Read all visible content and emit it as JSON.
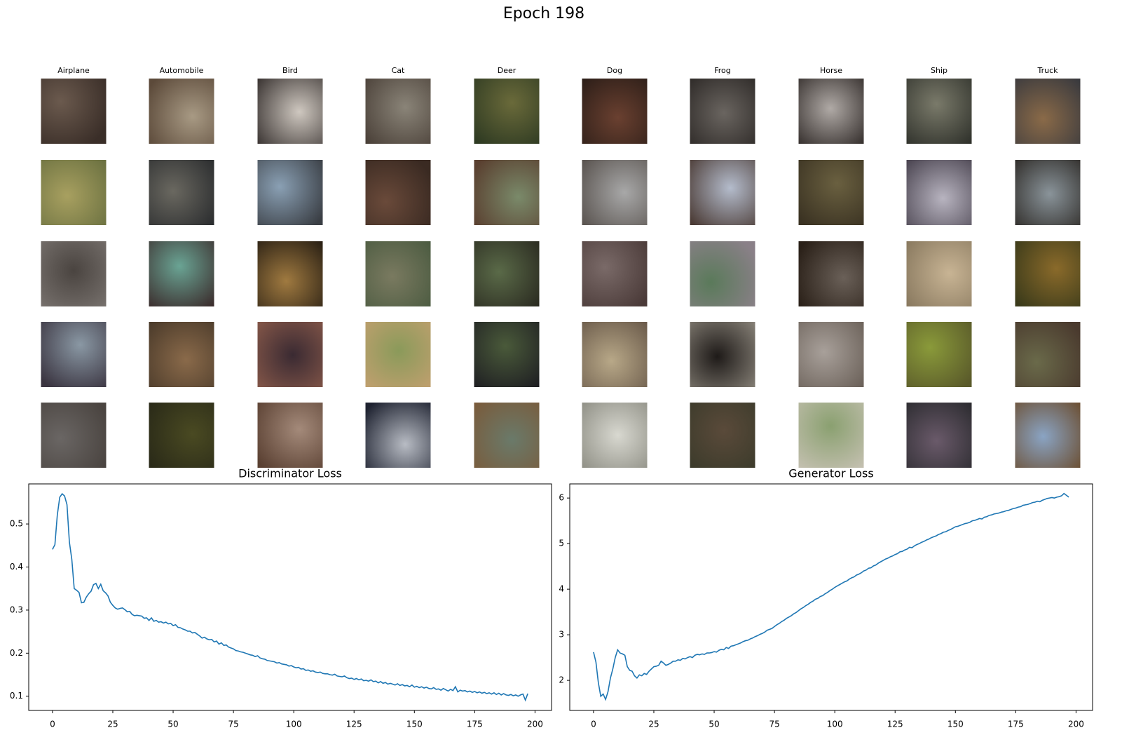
{
  "suptitle": "Epoch 198",
  "image_grid": {
    "columns": [
      "Airplane",
      "Automobile",
      "Bird",
      "Cat",
      "Deer",
      "Dog",
      "Frog",
      "Horse",
      "Ship",
      "Truck"
    ]
  },
  "chart_data": [
    {
      "type": "line",
      "title": "Discriminator Loss",
      "color": "#1f77b4",
      "x": [
        0,
        1,
        2,
        3,
        4,
        5,
        6,
        7,
        8,
        9,
        10,
        11,
        12,
        13,
        14,
        15,
        16,
        17,
        18,
        19,
        20,
        21,
        22,
        23,
        24,
        25,
        26,
        27,
        28,
        29,
        30,
        31,
        32,
        33,
        34,
        35,
        36,
        37,
        38,
        39,
        40,
        41,
        42,
        43,
        44,
        45,
        46,
        47,
        48,
        49,
        50,
        51,
        52,
        53,
        54,
        55,
        56,
        57,
        58,
        59,
        60,
        61,
        62,
        63,
        64,
        65,
        66,
        67,
        68,
        69,
        70,
        71,
        72,
        73,
        74,
        75,
        76,
        77,
        78,
        79,
        80,
        81,
        82,
        83,
        84,
        85,
        86,
        87,
        88,
        89,
        90,
        91,
        92,
        93,
        94,
        95,
        96,
        97,
        98,
        99,
        100,
        101,
        102,
        103,
        104,
        105,
        106,
        107,
        108,
        109,
        110,
        111,
        112,
        113,
        114,
        115,
        116,
        117,
        118,
        119,
        120,
        121,
        122,
        123,
        124,
        125,
        126,
        127,
        128,
        129,
        130,
        131,
        132,
        133,
        134,
        135,
        136,
        137,
        138,
        139,
        140,
        141,
        142,
        143,
        144,
        145,
        146,
        147,
        148,
        149,
        150,
        151,
        152,
        153,
        154,
        155,
        156,
        157,
        158,
        159,
        160,
        161,
        162,
        163,
        164,
        165,
        166,
        167,
        168,
        169,
        170,
        171,
        172,
        173,
        174,
        175,
        176,
        177,
        178,
        179,
        180,
        181,
        182,
        183,
        184,
        185,
        186,
        187,
        188,
        189,
        190,
        191,
        192,
        193,
        194,
        195,
        196,
        197
      ],
      "values": [
        0.441,
        0.452,
        0.521,
        0.562,
        0.57,
        0.565,
        0.545,
        0.458,
        0.418,
        0.35,
        0.346,
        0.341,
        0.317,
        0.318,
        0.33,
        0.338,
        0.344,
        0.359,
        0.362,
        0.35,
        0.36,
        0.345,
        0.34,
        0.333,
        0.318,
        0.311,
        0.305,
        0.302,
        0.304,
        0.305,
        0.301,
        0.296,
        0.297,
        0.29,
        0.287,
        0.288,
        0.287,
        0.286,
        0.281,
        0.282,
        0.276,
        0.282,
        0.274,
        0.276,
        0.272,
        0.273,
        0.27,
        0.272,
        0.268,
        0.269,
        0.264,
        0.266,
        0.26,
        0.259,
        0.256,
        0.254,
        0.251,
        0.251,
        0.247,
        0.248,
        0.244,
        0.24,
        0.235,
        0.237,
        0.233,
        0.231,
        0.232,
        0.226,
        0.228,
        0.221,
        0.224,
        0.218,
        0.219,
        0.214,
        0.212,
        0.21,
        0.206,
        0.205,
        0.203,
        0.202,
        0.2,
        0.198,
        0.196,
        0.195,
        0.192,
        0.194,
        0.189,
        0.187,
        0.186,
        0.183,
        0.182,
        0.181,
        0.18,
        0.177,
        0.178,
        0.175,
        0.174,
        0.173,
        0.17,
        0.171,
        0.168,
        0.166,
        0.167,
        0.163,
        0.164,
        0.16,
        0.161,
        0.158,
        0.159,
        0.156,
        0.155,
        0.156,
        0.153,
        0.152,
        0.152,
        0.15,
        0.149,
        0.151,
        0.147,
        0.146,
        0.145,
        0.147,
        0.143,
        0.141,
        0.142,
        0.139,
        0.141,
        0.138,
        0.14,
        0.136,
        0.137,
        0.135,
        0.138,
        0.134,
        0.135,
        0.131,
        0.134,
        0.13,
        0.132,
        0.128,
        0.13,
        0.128,
        0.126,
        0.129,
        0.125,
        0.127,
        0.124,
        0.125,
        0.122,
        0.126,
        0.121,
        0.123,
        0.12,
        0.122,
        0.119,
        0.121,
        0.118,
        0.117,
        0.12,
        0.116,
        0.117,
        0.114,
        0.118,
        0.115,
        0.112,
        0.116,
        0.113,
        0.122,
        0.11,
        0.114,
        0.112,
        0.113,
        0.11,
        0.112,
        0.109,
        0.111,
        0.108,
        0.11,
        0.107,
        0.109,
        0.106,
        0.108,
        0.105,
        0.108,
        0.104,
        0.107,
        0.103,
        0.106,
        0.103,
        0.102,
        0.104,
        0.101,
        0.103,
        0.1,
        0.103,
        0.105,
        0.091,
        0.106
      ],
      "xlim": [
        -9.85,
        206.85
      ],
      "xticks": [
        0,
        25,
        50,
        75,
        100,
        125,
        150,
        175,
        200
      ],
      "ylim": [
        0.067,
        0.593
      ],
      "yticks": [
        0.1,
        0.2,
        0.3,
        0.4,
        0.5
      ]
    },
    {
      "type": "line",
      "title": "Generator Loss",
      "color": "#1f77b4",
      "x": [
        0,
        1,
        2,
        3,
        4,
        5,
        6,
        7,
        8,
        9,
        10,
        11,
        12,
        13,
        14,
        15,
        16,
        17,
        18,
        19,
        20,
        21,
        22,
        23,
        24,
        25,
        26,
        27,
        28,
        29,
        30,
        31,
        32,
        33,
        34,
        35,
        36,
        37,
        38,
        39,
        40,
        41,
        42,
        43,
        44,
        45,
        46,
        47,
        48,
        49,
        50,
        51,
        52,
        53,
        54,
        55,
        56,
        57,
        58,
        59,
        60,
        61,
        62,
        63,
        64,
        65,
        66,
        67,
        68,
        69,
        70,
        71,
        72,
        73,
        74,
        75,
        76,
        77,
        78,
        79,
        80,
        81,
        82,
        83,
        84,
        85,
        86,
        87,
        88,
        89,
        90,
        91,
        92,
        93,
        94,
        95,
        96,
        97,
        98,
        99,
        100,
        101,
        102,
        103,
        104,
        105,
        106,
        107,
        108,
        109,
        110,
        111,
        112,
        113,
        114,
        115,
        116,
        117,
        118,
        119,
        120,
        121,
        122,
        123,
        124,
        125,
        126,
        127,
        128,
        129,
        130,
        131,
        132,
        133,
        134,
        135,
        136,
        137,
        138,
        139,
        140,
        141,
        142,
        143,
        144,
        145,
        146,
        147,
        148,
        149,
        150,
        151,
        152,
        153,
        154,
        155,
        156,
        157,
        158,
        159,
        160,
        161,
        162,
        163,
        164,
        165,
        166,
        167,
        168,
        169,
        170,
        171,
        172,
        173,
        174,
        175,
        176,
        177,
        178,
        179,
        180,
        181,
        182,
        183,
        184,
        185,
        186,
        187,
        188,
        189,
        190,
        191,
        192,
        193,
        194,
        195,
        196,
        197
      ],
      "values": [
        2.62,
        2.4,
        1.95,
        1.65,
        1.7,
        1.58,
        1.75,
        2.05,
        2.25,
        2.5,
        2.67,
        2.6,
        2.58,
        2.55,
        2.3,
        2.22,
        2.2,
        2.1,
        2.05,
        2.12,
        2.1,
        2.15,
        2.13,
        2.2,
        2.25,
        2.3,
        2.31,
        2.33,
        2.42,
        2.38,
        2.33,
        2.35,
        2.38,
        2.42,
        2.42,
        2.45,
        2.44,
        2.48,
        2.47,
        2.5,
        2.52,
        2.5,
        2.55,
        2.57,
        2.56,
        2.58,
        2.57,
        2.6,
        2.6,
        2.61,
        2.63,
        2.62,
        2.66,
        2.68,
        2.67,
        2.72,
        2.7,
        2.75,
        2.76,
        2.78,
        2.8,
        2.82,
        2.85,
        2.87,
        2.88,
        2.91,
        2.93,
        2.96,
        2.98,
        3.01,
        3.03,
        3.06,
        3.1,
        3.12,
        3.14,
        3.18,
        3.22,
        3.25,
        3.29,
        3.32,
        3.36,
        3.39,
        3.42,
        3.46,
        3.49,
        3.53,
        3.57,
        3.6,
        3.64,
        3.67,
        3.71,
        3.74,
        3.78,
        3.8,
        3.84,
        3.86,
        3.9,
        3.93,
        3.97,
        4.0,
        4.04,
        4.07,
        4.1,
        4.13,
        4.16,
        4.18,
        4.22,
        4.25,
        4.27,
        4.31,
        4.33,
        4.36,
        4.4,
        4.42,
        4.46,
        4.47,
        4.51,
        4.53,
        4.57,
        4.6,
        4.63,
        4.66,
        4.68,
        4.71,
        4.73,
        4.76,
        4.78,
        4.82,
        4.83,
        4.86,
        4.88,
        4.92,
        4.91,
        4.95,
        4.98,
        5.0,
        5.03,
        5.05,
        5.08,
        5.1,
        5.13,
        5.15,
        5.17,
        5.2,
        5.22,
        5.25,
        5.26,
        5.29,
        5.31,
        5.34,
        5.37,
        5.38,
        5.4,
        5.42,
        5.44,
        5.45,
        5.47,
        5.5,
        5.51,
        5.53,
        5.55,
        5.54,
        5.58,
        5.59,
        5.62,
        5.63,
        5.65,
        5.66,
        5.67,
        5.69,
        5.7,
        5.72,
        5.73,
        5.75,
        5.77,
        5.78,
        5.8,
        5.81,
        5.84,
        5.85,
        5.86,
        5.88,
        5.9,
        5.91,
        5.93,
        5.92,
        5.95,
        5.97,
        5.99,
        6.0,
        6.01,
        6.0,
        6.02,
        6.03,
        6.05,
        6.1,
        6.06,
        6.02
      ],
      "xlim": [
        -9.85,
        206.85
      ],
      "xticks": [
        0,
        25,
        50,
        75,
        100,
        125,
        150,
        175,
        200
      ],
      "ylim": [
        1.34,
        6.31
      ],
      "yticks": [
        2,
        3,
        4,
        5,
        6
      ]
    }
  ]
}
